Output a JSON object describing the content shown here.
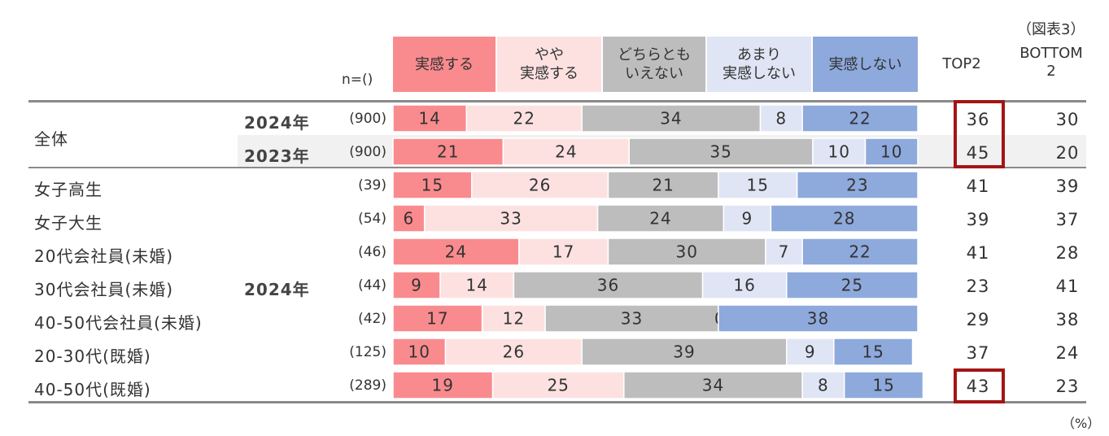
{
  "figure_label": "（図表3）",
  "unit_label": "（%）",
  "n_header": "n=()",
  "legend": [
    {
      "label": "実感する",
      "color": "#f98b8e"
    },
    {
      "label": "やや\n実感する",
      "color": "#fde1e1"
    },
    {
      "label": "どちらとも\nいえない",
      "color": "#bdbdbd"
    },
    {
      "label": "あまり\n実感しない",
      "color": "#dfe5f4"
    },
    {
      "label": "実感しない",
      "color": "#8ea9dc"
    }
  ],
  "columns": {
    "top2": "TOP2",
    "bottom2": "BOTTOM\n2"
  },
  "group_labels": {
    "overall": "全体",
    "year_2024": "2024年"
  },
  "rows": [
    {
      "category": "",
      "year": "2024年",
      "n": "(900)",
      "top2": "36",
      "bottom2": "30"
    },
    {
      "category": "",
      "year": "2023年",
      "n": "(900)",
      "top2": "45",
      "bottom2": "20"
    },
    {
      "category": "女子高生",
      "year": "",
      "n": "(39)",
      "top2": "41",
      "bottom2": "39"
    },
    {
      "category": "女子大生",
      "year": "",
      "n": "(54)",
      "top2": "39",
      "bottom2": "37"
    },
    {
      "category": "20代会社員(未婚)",
      "year": "",
      "n": "(46)",
      "top2": "41",
      "bottom2": "28"
    },
    {
      "category": "30代会社員(未婚)",
      "year": "",
      "n": "(44)",
      "top2": "23",
      "bottom2": "41"
    },
    {
      "category": "40-50代会社員(未婚)",
      "year": "",
      "n": "(42)",
      "top2": "29",
      "bottom2": "38"
    },
    {
      "category": "20-30代(既婚)",
      "year": "",
      "n": "(125)",
      "top2": "37",
      "bottom2": "24"
    },
    {
      "category": "40-50代(既婚)",
      "year": "",
      "n": "(289)",
      "top2": "43",
      "bottom2": "23"
    }
  ],
  "chart_data": {
    "type": "bar",
    "stacked": true,
    "orientation": "horizontal",
    "xlim": [
      0,
      100
    ],
    "categories": [
      "全体 2024年",
      "全体 2023年",
      "女子高生",
      "女子大生",
      "20代会社員(未婚)",
      "30代会社員(未婚)",
      "40-50代会社員(未婚)",
      "20-30代(既婚)",
      "40-50代(既婚)"
    ],
    "series": [
      {
        "name": "実感する",
        "values": [
          14,
          21,
          15,
          6,
          24,
          9,
          17,
          10,
          19
        ]
      },
      {
        "name": "やや実感する",
        "values": [
          22,
          24,
          26,
          33,
          17,
          14,
          12,
          26,
          25
        ]
      },
      {
        "name": "どちらともいえない",
        "values": [
          34,
          35,
          21,
          24,
          30,
          36,
          33,
          39,
          34
        ]
      },
      {
        "name": "あまり実感しない",
        "values": [
          8,
          10,
          15,
          9,
          7,
          16,
          0,
          9,
          8
        ]
      },
      {
        "name": "実感しない",
        "values": [
          22,
          10,
          23,
          28,
          22,
          25,
          38,
          15,
          15
        ]
      }
    ]
  }
}
